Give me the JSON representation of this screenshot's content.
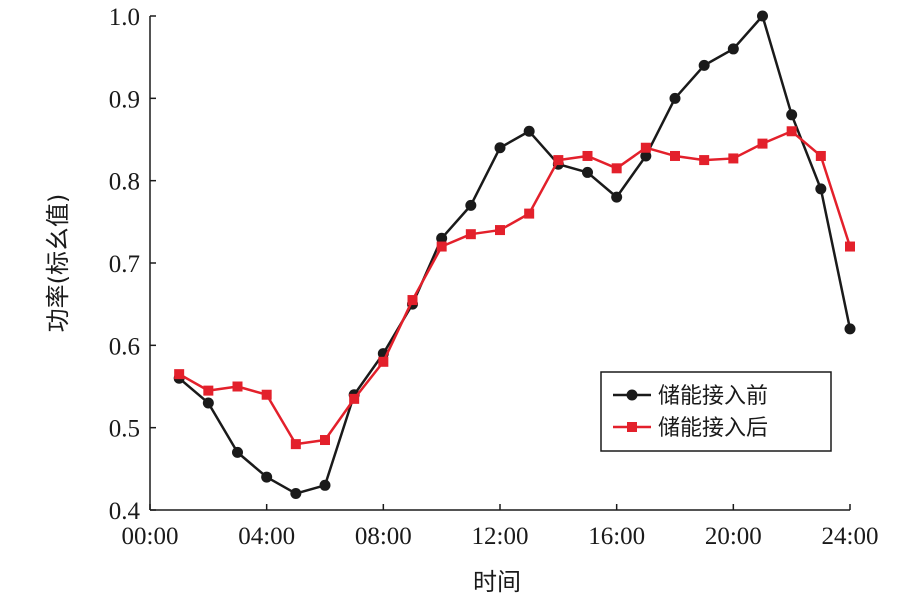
{
  "chart_data": {
    "type": "line",
    "xlabel": "时间",
    "ylabel": "功率(标幺值)",
    "x_tick_labels": [
      "00:00",
      "04:00",
      "08:00",
      "12:00",
      "16:00",
      "20:00",
      "24:00"
    ],
    "y_tick_labels": [
      "0.4",
      "0.5",
      "0.6",
      "0.7",
      "0.8",
      "0.9",
      "1.0"
    ],
    "xlim": [
      0,
      24
    ],
    "ylim": [
      0.4,
      1.0
    ],
    "legend_position": "bottom-right",
    "grid": false,
    "x": [
      1,
      2,
      3,
      4,
      5,
      6,
      7,
      8,
      9,
      10,
      11,
      12,
      13,
      14,
      15,
      16,
      17,
      18,
      19,
      20,
      21,
      22,
      23,
      24
    ],
    "series": [
      {
        "name": "储能接入前",
        "color": "#1a1a1a",
        "marker": "circle",
        "values": [
          0.56,
          0.53,
          0.47,
          0.44,
          0.42,
          0.43,
          0.54,
          0.59,
          0.65,
          0.73,
          0.77,
          0.84,
          0.86,
          0.82,
          0.81,
          0.78,
          0.83,
          0.9,
          0.94,
          0.96,
          1.0,
          0.88,
          0.79,
          0.62
        ]
      },
      {
        "name": "储能接入后",
        "color": "#e3202b",
        "marker": "square",
        "values": [
          0.565,
          0.545,
          0.55,
          0.54,
          0.48,
          0.485,
          0.535,
          0.58,
          0.655,
          0.72,
          0.735,
          0.74,
          0.76,
          0.825,
          0.83,
          0.815,
          0.84,
          0.83,
          0.825,
          0.827,
          0.845,
          0.86,
          0.83,
          0.72
        ]
      }
    ]
  }
}
